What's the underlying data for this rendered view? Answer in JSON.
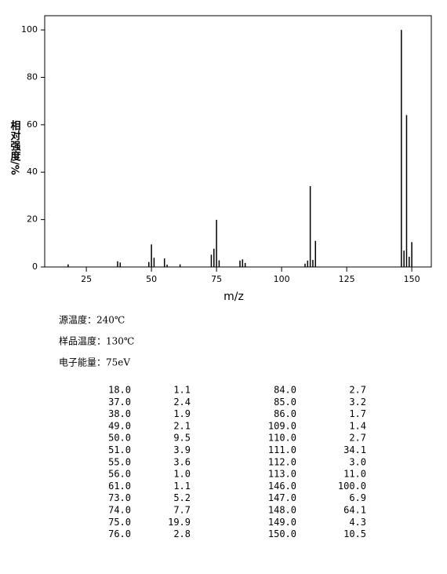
{
  "chart_data": {
    "type": "bar",
    "x_label": "m/z",
    "y_label": "相对强度/%",
    "x": [
      18,
      37,
      38,
      49,
      50,
      51,
      55,
      56,
      61,
      73,
      74,
      75,
      76,
      84,
      85,
      86,
      109,
      110,
      111,
      112,
      113,
      146,
      147,
      148,
      149,
      150
    ],
    "x_labels": [
      "18.0",
      "37.0",
      "38.0",
      "49.0",
      "50.0",
      "51.0",
      "55.0",
      "56.0",
      "61.0",
      "73.0",
      "74.0",
      "75.0",
      "76.0",
      "84.0",
      "85.0",
      "86.0",
      "109.0",
      "110.0",
      "111.0",
      "112.0",
      "113.0",
      "146.0",
      "147.0",
      "148.0",
      "149.0",
      "150.0"
    ],
    "values": [
      1.1,
      2.4,
      1.9,
      2.1,
      9.5,
      3.9,
      3.6,
      1.0,
      1.1,
      5.2,
      7.7,
      19.9,
      2.8,
      2.7,
      3.2,
      1.7,
      1.4,
      2.7,
      34.1,
      3.0,
      11.0,
      100,
      6.9,
      64.1,
      4.3,
      10.5
    ],
    "value_labels": [
      "1.1",
      "2.4",
      "1.9",
      "2.1",
      "9.5",
      "3.9",
      "3.6",
      "1.0",
      "1.1",
      "5.2",
      "7.7",
      "19.9",
      "2.8",
      "2.7",
      "3.2",
      "1.7",
      "1.4",
      "2.7",
      "34.1",
      "3.0",
      "11.0",
      "100.0",
      "6.9",
      "64.1",
      "4.3",
      "10.5"
    ],
    "color": "#000000",
    "xlim": [
      9,
      157.5
    ],
    "xticks": [
      25,
      50,
      75,
      100,
      125,
      150
    ],
    "ylim": [
      0,
      106
    ],
    "yticks": [
      0,
      20,
      40,
      60,
      80,
      100
    ]
  },
  "info": [
    "源温度：240℃",
    "样品温度：130℃",
    "电子能量：75eV"
  ]
}
